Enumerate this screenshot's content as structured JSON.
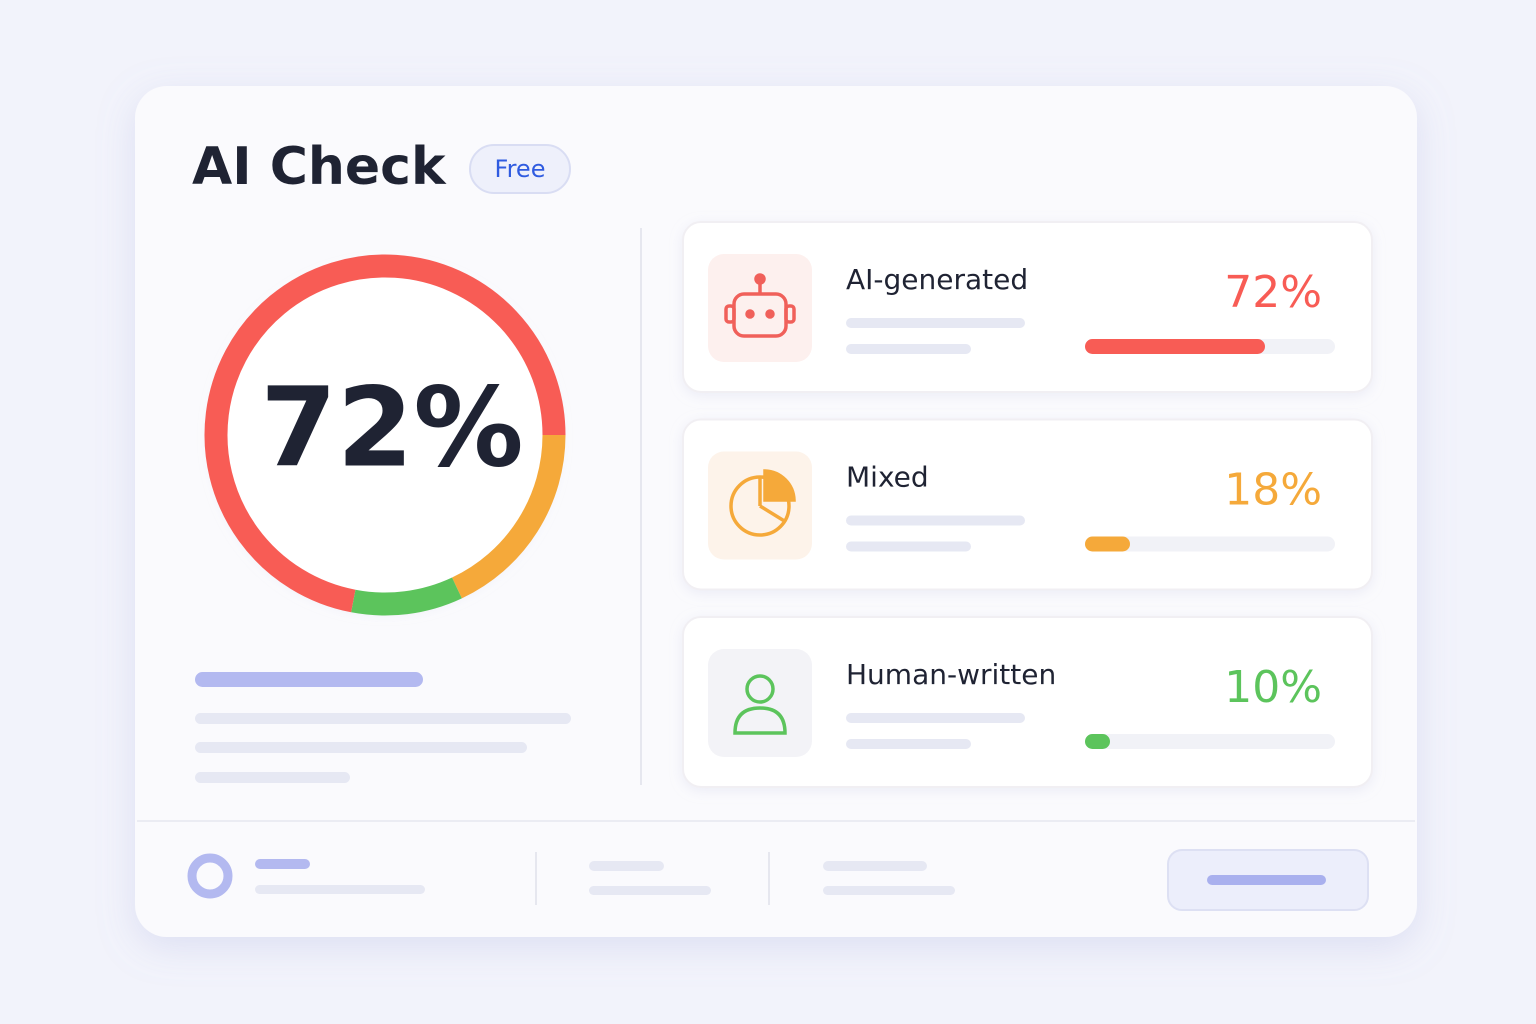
{
  "header": {
    "title": "AI Check",
    "badge": "Free"
  },
  "chart_data": {
    "type": "donut",
    "categories": [
      "AI-generated",
      "Mixed",
      "Human-written"
    ],
    "values": [
      72,
      18,
      10
    ],
    "value_labels": [
      "72%",
      "18%",
      "10%"
    ],
    "colors": [
      "#f85c55",
      "#f5a93a",
      "#5cc45c"
    ]
  }
}
